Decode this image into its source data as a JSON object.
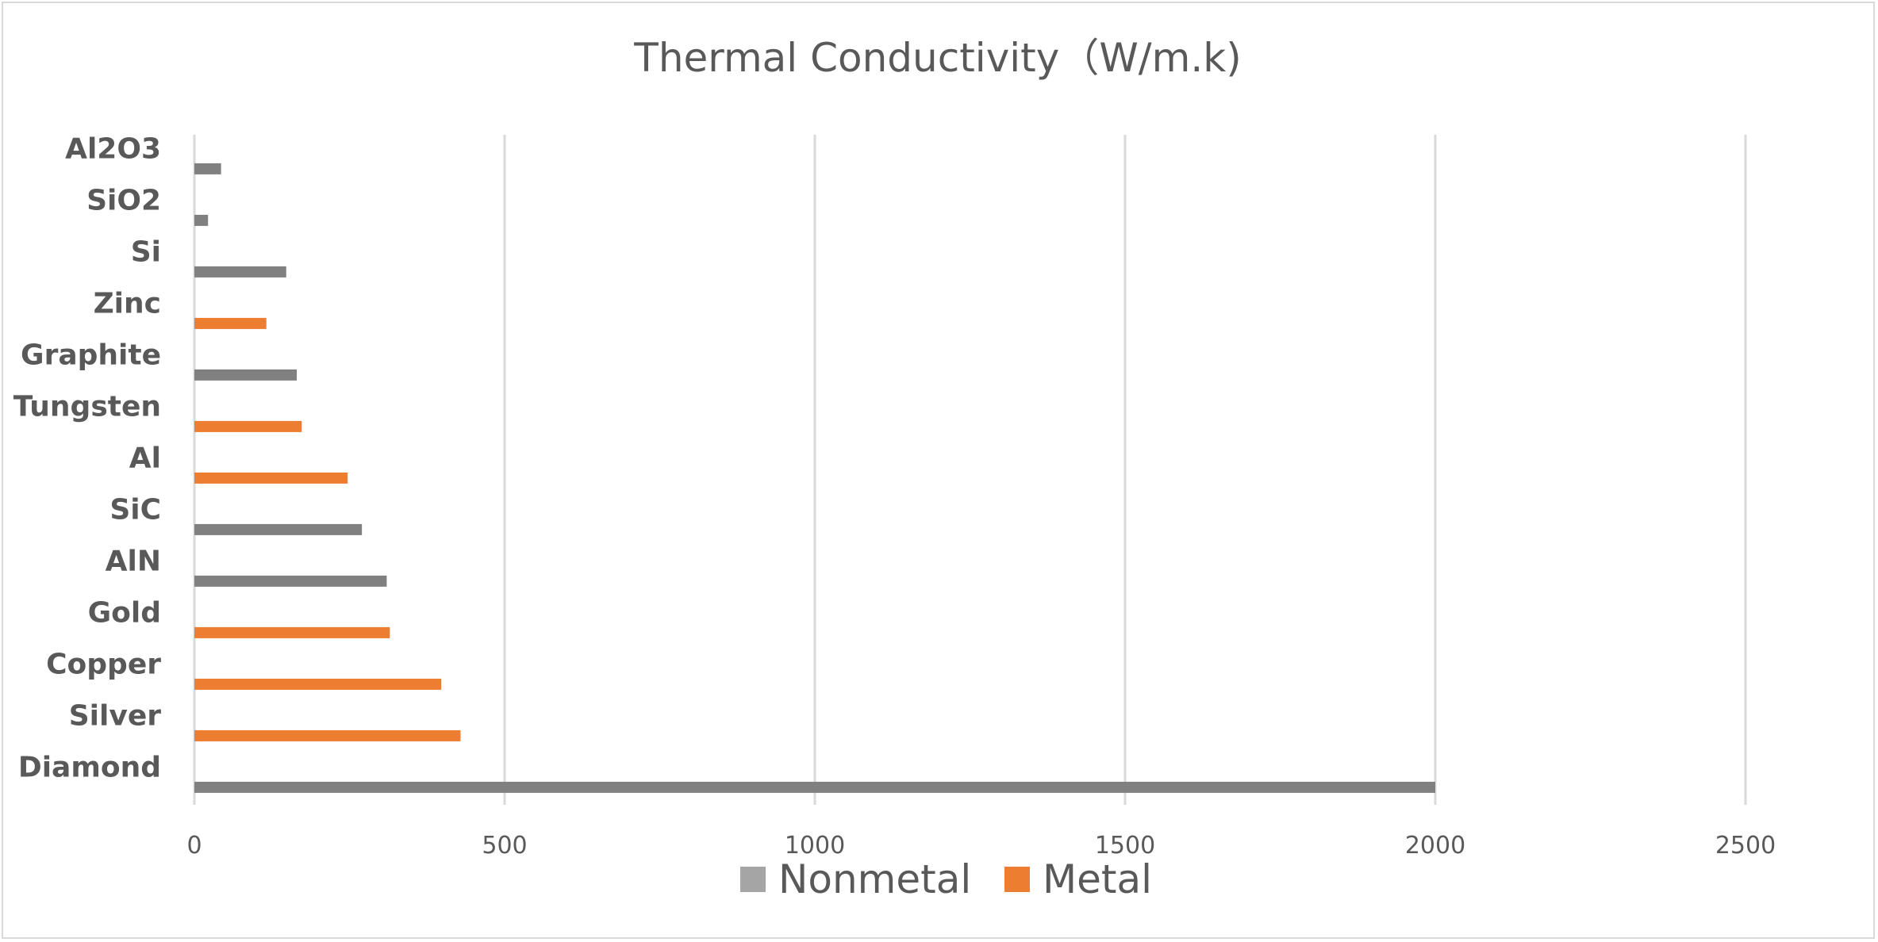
{
  "chart_data": {
    "type": "bar",
    "orientation": "horizontal",
    "title": "Thermal Conductivity（W/m.k)",
    "xlabel": "",
    "ylabel": "",
    "xlim": [
      0,
      2500
    ],
    "x_ticks": [
      0,
      500,
      1000,
      1500,
      2000,
      2500
    ],
    "grid": "vertical",
    "legend_position": "bottom",
    "categories": [
      "Al2O3",
      "SiO2",
      "Si",
      "Zinc",
      "Graphite",
      "Tungsten",
      "Al",
      "SiC",
      "AlN",
      "Gold",
      "Copper",
      "Silver",
      "Diamond"
    ],
    "series": [
      {
        "name": "Nonmetal",
        "color": "#808080",
        "legend_color": "#a5a5a5",
        "values": [
          43,
          22,
          148,
          null,
          165,
          null,
          null,
          270,
          310,
          null,
          null,
          null,
          2000
        ]
      },
      {
        "name": "Metal",
        "color": "#ed7d31",
        "legend_color": "#ed7d31",
        "values": [
          null,
          null,
          null,
          116,
          null,
          173,
          247,
          null,
          null,
          315,
          398,
          429,
          null
        ]
      }
    ]
  }
}
